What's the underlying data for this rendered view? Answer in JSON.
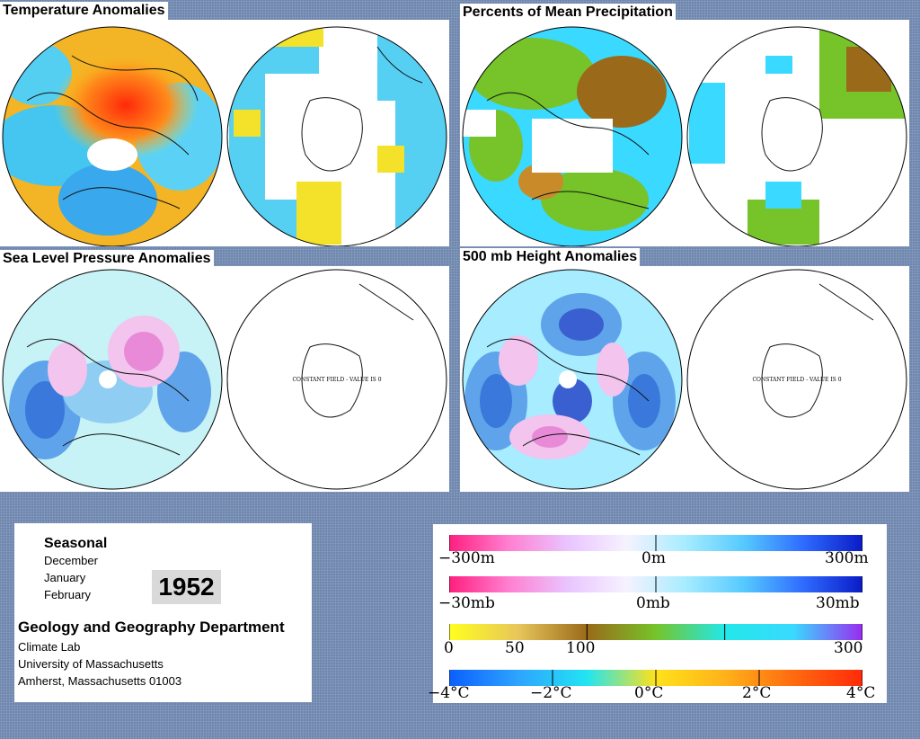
{
  "panels": {
    "temperature": {
      "title": "Temperature Anomalies"
    },
    "precipitation": {
      "title": "Percents of Mean Precipitation"
    },
    "slp": {
      "title": "Sea Level Pressure Anomalies",
      "constant_text": "CONSTANT FIELD - VALUE IS 0"
    },
    "height500": {
      "title": "500 mb Height Anomalies",
      "constant_text": "CONSTANT FIELD - VALUE IS 0"
    }
  },
  "info": {
    "seasonal": "Seasonal",
    "months": [
      "December",
      "January",
      "February"
    ],
    "year": "1952",
    "department": "Geology and Geography Department",
    "lab": "Climate Lab",
    "university": "University of Massachusetts",
    "address": "Amherst, Massachusetts 01003"
  },
  "legend": {
    "height": {
      "labels": [
        "−300m",
        "0m",
        "300m"
      ],
      "colors": [
        "#ff1f7f",
        "#ff7fd0",
        "#e9c4ff",
        "#f6f2ff",
        "#a7ecff",
        "#55c9ff",
        "#2f6bff",
        "#0a1bc6"
      ]
    },
    "pressure": {
      "labels": [
        "−30mb",
        "0mb",
        "30mb"
      ],
      "colors": [
        "#ff1f7f",
        "#ff7fd0",
        "#e9c4ff",
        "#f6f2ff",
        "#a7ecff",
        "#55c9ff",
        "#2f6bff",
        "#0a1bc6"
      ]
    },
    "precip": {
      "labels": [
        "0",
        "50",
        "100",
        "300"
      ],
      "colors": [
        "#ffff1f",
        "#e8c65a",
        "#9a6a1a",
        "#76c42a",
        "#22e8e8",
        "#3ad9ff",
        "#9a2cf0"
      ]
    },
    "temp": {
      "labels": [
        "−4°C",
        "−2°C",
        "0°C",
        "2°C",
        "4°C"
      ],
      "colors": [
        "#0c5fff",
        "#2ea4ff",
        "#22e4f2",
        "#ffe21a",
        "#ffb21a",
        "#ff6a0f",
        "#ff2a0a"
      ]
    }
  }
}
